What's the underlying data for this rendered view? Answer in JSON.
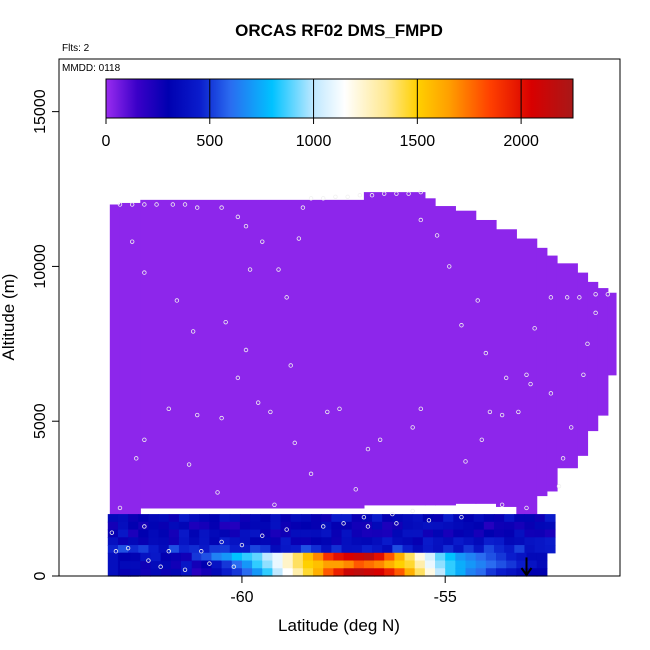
{
  "chart_data": {
    "type": "heatmap",
    "title": "ORCAS RF02 DMS_FMPD",
    "annotations": {
      "flights": "Flts: 2",
      "date": "MMDD: 0118"
    },
    "xlabel": "Latitude (deg N)",
    "ylabel": "Altitude (m)",
    "xlim": [
      -64.5,
      -50.7
    ],
    "ylim": [
      0,
      16700
    ],
    "xticks": [
      -60,
      -55
    ],
    "yticks": [
      0,
      5000,
      10000,
      15000
    ],
    "grid": false,
    "colorbar": {
      "placement": "top-inside",
      "min": 0,
      "max": 2250,
      "ticks": [
        0,
        500,
        1000,
        1500,
        2000
      ],
      "stops": [
        [
          0,
          "#9a2cf0"
        ],
        [
          150,
          "#3a00c8"
        ],
        [
          300,
          "#0000b0"
        ],
        [
          450,
          "#0a1ccc"
        ],
        [
          600,
          "#2a6cf0"
        ],
        [
          800,
          "#00c2ff"
        ],
        [
          1000,
          "#bfe8ff"
        ],
        [
          1150,
          "#ffffff"
        ],
        [
          1350,
          "#ffe890"
        ],
        [
          1500,
          "#ffd000"
        ],
        [
          1650,
          "#ffa000"
        ],
        [
          1850,
          "#ff4000"
        ],
        [
          2050,
          "#d80000"
        ],
        [
          2250,
          "#a81818"
        ]
      ]
    },
    "grid_cells": {
      "lat_bin_deg": 0.25,
      "alt_bin_m": 250,
      "background_value": 20,
      "envelope": [
        [
          -63.25,
          -63.0,
          2000,
          12000
        ],
        [
          -63.0,
          -62.5,
          2000,
          12050
        ],
        [
          -62.5,
          -57.0,
          2200,
          12150
        ],
        [
          -57.0,
          -55.5,
          2300,
          12400
        ],
        [
          -55.5,
          -55.25,
          2300,
          12200
        ],
        [
          -55.25,
          -54.75,
          2300,
          11950
        ],
        [
          -54.75,
          -54.25,
          2350,
          11800
        ],
        [
          -54.25,
          -53.75,
          2350,
          11500
        ],
        [
          -53.75,
          -53.25,
          2250,
          11200
        ],
        [
          -53.25,
          -52.75,
          2000,
          10900
        ],
        [
          -52.75,
          -52.5,
          2600,
          10600
        ],
        [
          -52.5,
          -52.25,
          2750,
          10350
        ],
        [
          -52.25,
          -51.75,
          3500,
          10100
        ],
        [
          -51.75,
          -51.5,
          3900,
          9800
        ],
        [
          -51.5,
          -51.25,
          4700,
          9500
        ],
        [
          -51.25,
          -51.0,
          5200,
          9300
        ],
        [
          -51.0,
          -50.8,
          6500,
          9150
        ]
      ],
      "boundary_layer": [
        {
          "alt": [
            1750,
            2000
          ],
          "lat": [
            -63.3,
            -52.5
          ],
          "value": 350
        },
        {
          "alt": [
            1500,
            1750
          ],
          "lat": [
            -63.3,
            -52.5
          ],
          "value": 300
        },
        {
          "alt": [
            1250,
            1500
          ],
          "lat": [
            -63.3,
            -52.5
          ],
          "value": 330
        },
        {
          "alt": [
            1000,
            1250
          ],
          "lat": [
            -63.3,
            -52.5
          ],
          "value": 360
        },
        {
          "alt": [
            750,
            1000
          ],
          "lat": [
            -63.3,
            -52.5
          ],
          "value": 450
        },
        {
          "alt": [
            0,
            750
          ],
          "lat": [
            -63.3,
            -62.75
          ],
          "value": 300
        }
      ],
      "plume": [
        {
          "lat": -61.25,
          "bands": [
            500,
            250,
            200
          ]
        },
        {
          "lat": -61.0,
          "bands": [
            550,
            300,
            250
          ]
        },
        {
          "lat": -60.75,
          "bands": [
            650,
            400,
            350
          ]
        },
        {
          "lat": -60.5,
          "bands": [
            700,
            500,
            450
          ]
        },
        {
          "lat": -60.25,
          "bands": [
            800,
            600,
            500
          ]
        },
        {
          "lat": -60.0,
          "bands": [
            850,
            700,
            600
          ]
        },
        {
          "lat": -59.75,
          "bands": [
            900,
            850,
            700
          ]
        },
        {
          "lat": -59.5,
          "bands": [
            1000,
            950,
            850
          ]
        },
        {
          "lat": -59.25,
          "bands": [
            1100,
            1100,
            1000
          ]
        },
        {
          "lat": -59.0,
          "bands": [
            1250,
            1250,
            1150
          ]
        },
        {
          "lat": -58.75,
          "bands": [
            1400,
            1400,
            1300
          ]
        },
        {
          "lat": -58.5,
          "bands": [
            1550,
            1500,
            1450
          ]
        },
        {
          "lat": -58.25,
          "bands": [
            1700,
            1550,
            1600
          ]
        },
        {
          "lat": -58.0,
          "bands": [
            1900,
            1650,
            1800
          ]
        },
        {
          "lat": -57.75,
          "bands": [
            2000,
            1650,
            1950
          ]
        },
        {
          "lat": -57.5,
          "bands": [
            2050,
            1700,
            2100
          ]
        },
        {
          "lat": -57.25,
          "bands": [
            2100,
            1800,
            2150
          ]
        },
        {
          "lat": -57.0,
          "bands": [
            2150,
            1750,
            2100
          ]
        },
        {
          "lat": -56.75,
          "bands": [
            2000,
            1700,
            2050
          ]
        },
        {
          "lat": -56.5,
          "bands": [
            1800,
            1600,
            1950
          ]
        },
        {
          "lat": -56.25,
          "bands": [
            1600,
            1500,
            1800
          ]
        },
        {
          "lat": -56.0,
          "bands": [
            1400,
            1450,
            1600
          ]
        },
        {
          "lat": -55.75,
          "bands": [
            1200,
            1300,
            1400
          ]
        },
        {
          "lat": -55.5,
          "bands": [
            1050,
            1100,
            1200
          ]
        },
        {
          "lat": -55.25,
          "bands": [
            900,
            950,
            1000
          ]
        },
        {
          "lat": -55.0,
          "bands": [
            800,
            850,
            850
          ]
        },
        {
          "lat": -54.75,
          "bands": [
            700,
            750,
            750
          ]
        },
        {
          "lat": -54.5,
          "bands": [
            650,
            700,
            650
          ]
        },
        {
          "lat": -54.25,
          "bands": [
            600,
            650,
            600
          ]
        },
        {
          "lat": -54.0,
          "bands": [
            550,
            600,
            500
          ]
        },
        {
          "lat": -53.75,
          "bands": [
            500,
            550,
            450
          ]
        },
        {
          "lat": -53.5,
          "bands": [
            450,
            500,
            400
          ]
        },
        {
          "lat": -53.25,
          "bands": [
            400,
            450,
            350
          ]
        },
        {
          "lat": -53.0,
          "bands": [
            350,
            400,
            300
          ]
        },
        {
          "lat": -52.75,
          "bands": [
            350,
            350,
            300
          ]
        }
      ]
    },
    "sample_points": [
      [
        -63.0,
        12000
      ],
      [
        -62.7,
        12000
      ],
      [
        -62.4,
        12000
      ],
      [
        -62.1,
        12000
      ],
      [
        -61.7,
        12000
      ],
      [
        -61.4,
        12000
      ],
      [
        -61.1,
        11900
      ],
      [
        -60.5,
        11900
      ],
      [
        -60.1,
        11600
      ],
      [
        -59.9,
        11300
      ],
      [
        -58.3,
        12200
      ],
      [
        -58.0,
        12200
      ],
      [
        -57.7,
        12250
      ],
      [
        -57.4,
        12250
      ],
      [
        -57.1,
        12300
      ],
      [
        -56.8,
        12300
      ],
      [
        -56.5,
        12350
      ],
      [
        -56.2,
        12350
      ],
      [
        -55.9,
        12350
      ],
      [
        -55.6,
        12400
      ],
      [
        -58.5,
        11900
      ],
      [
        -59.5,
        10800
      ],
      [
        -59.8,
        9900
      ],
      [
        -62.7,
        10800
      ],
      [
        -62.4,
        9800
      ],
      [
        -61.6,
        8900
      ],
      [
        -61.2,
        7900
      ],
      [
        -60.4,
        8200
      ],
      [
        -59.9,
        7300
      ],
      [
        -58.9,
        9000
      ],
      [
        -59.1,
        9900
      ],
      [
        -58.6,
        10900
      ],
      [
        -55.6,
        11500
      ],
      [
        -55.2,
        11000
      ],
      [
        -54.9,
        10000
      ],
      [
        -54.2,
        8900
      ],
      [
        -54.6,
        8100
      ],
      [
        -54.0,
        7200
      ],
      [
        -53.5,
        6400
      ],
      [
        -53.0,
        6500
      ],
      [
        -52.8,
        8000
      ],
      [
        -52.4,
        9000
      ],
      [
        -52.0,
        9000
      ],
      [
        -51.7,
        9000
      ],
      [
        -51.3,
        9100
      ],
      [
        -51.0,
        9100
      ],
      [
        -51.3,
        8500
      ],
      [
        -51.5,
        7500
      ],
      [
        -51.6,
        6500
      ],
      [
        -51.9,
        4800
      ],
      [
        -52.1,
        3800
      ],
      [
        -52.2,
        2900
      ],
      [
        -52.4,
        5900
      ],
      [
        -52.9,
        6200
      ],
      [
        -53.2,
        5300
      ],
      [
        -53.6,
        5200
      ],
      [
        -53.9,
        5300
      ],
      [
        -54.1,
        4400
      ],
      [
        -54.5,
        3700
      ],
      [
        -55.6,
        5400
      ],
      [
        -55.8,
        4800
      ],
      [
        -56.6,
        4400
      ],
      [
        -57.2,
        2800
      ],
      [
        -58.3,
        3300
      ],
      [
        -58.7,
        4300
      ],
      [
        -59.3,
        5300
      ],
      [
        -59.6,
        5600
      ],
      [
        -60.1,
        6400
      ],
      [
        -60.5,
        5100
      ],
      [
        -61.1,
        5200
      ],
      [
        -61.8,
        5400
      ],
      [
        -62.4,
        4400
      ],
      [
        -62.6,
        3800
      ],
      [
        -63.0,
        2200
      ],
      [
        -63.2,
        1400
      ],
      [
        -62.8,
        900
      ],
      [
        -62.4,
        1600
      ],
      [
        -61.8,
        800
      ],
      [
        -61.0,
        800
      ],
      [
        -60.5,
        1100
      ],
      [
        -60.0,
        1000
      ],
      [
        -59.5,
        1300
      ],
      [
        -58.9,
        1500
      ],
      [
        -58.0,
        1600
      ],
      [
        -57.5,
        1700
      ],
      [
        -56.9,
        1600
      ],
      [
        -56.2,
        1700
      ],
      [
        -55.4,
        1800
      ],
      [
        -54.6,
        1900
      ],
      [
        -53.6,
        2300
      ],
      [
        -53.0,
        2200
      ],
      [
        -62.0,
        300
      ],
      [
        -61.4,
        200
      ],
      [
        -60.8,
        400
      ],
      [
        -60.2,
        300
      ],
      [
        -63.1,
        800
      ],
      [
        -62.3,
        500
      ],
      [
        -57.0,
        1900
      ],
      [
        -55.8,
        2100
      ],
      [
        -57.6,
        5400
      ],
      [
        -57.9,
        5300
      ],
      [
        -56.3,
        2000
      ],
      [
        -61.3,
        3600
      ],
      [
        -60.6,
        2700
      ],
      [
        -59.2,
        2300
      ],
      [
        -56.9,
        4100
      ],
      [
        -58.8,
        6800
      ]
    ],
    "end_marker": {
      "lat": -53.0,
      "alt_top": 600,
      "alt_bottom": 0
    }
  }
}
